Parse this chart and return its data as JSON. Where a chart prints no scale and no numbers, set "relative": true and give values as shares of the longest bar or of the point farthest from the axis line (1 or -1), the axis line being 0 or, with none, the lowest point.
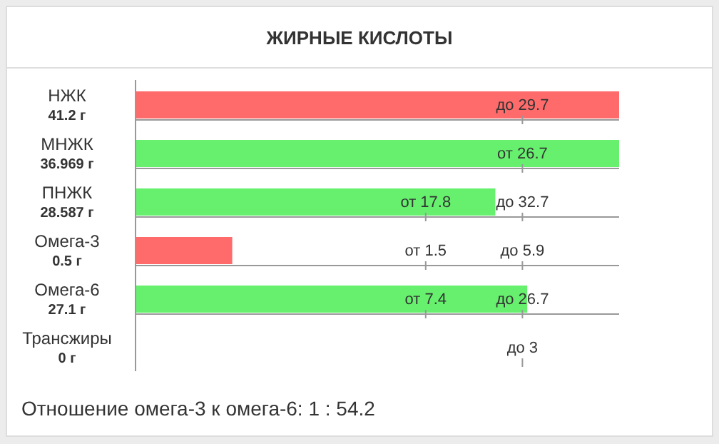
{
  "chart_data": {
    "type": "bar",
    "orientation": "horizontal",
    "relative": true,
    "title": "ЖИРНЫЕ КИСЛОТЫ",
    "categories": [
      "НЖК",
      "МНЖК",
      "ПНЖК",
      "Омега-3",
      "Омега-6",
      "Трансжиры"
    ],
    "values": [
      1,
      1,
      0.744,
      0.2,
      0.81,
      0
    ],
    "colors": [
      "#ff6b6b",
      "#66f06e",
      "#66f06e",
      "#ff6b6b",
      "#66f06e",
      "#66f06e"
    ],
    "annotations": [
      "41.2 г",
      "36.969 г",
      "28.587 г",
      "0.5 г",
      "27.1 г",
      "0 г",
      "до 29.7",
      "от 26.7",
      "от 17.8",
      "до 32.7",
      "от 1.5",
      "до 5.9",
      "от 7.4",
      "до 26.7",
      "до 3",
      "Отношение омега-3 к омега-6: 1 : 54.2"
    ],
    "legend": false,
    "grid": false
  }
}
